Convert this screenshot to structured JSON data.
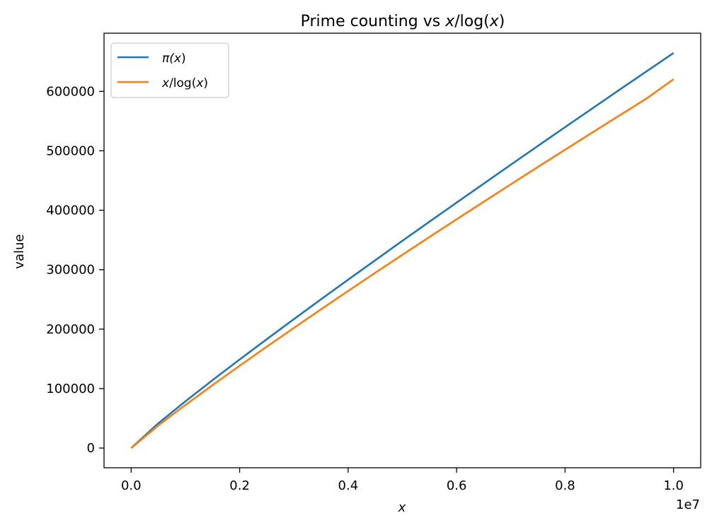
{
  "chart_data": {
    "type": "line",
    "title": {
      "prefix": "Prime counting vs ",
      "var": "x",
      "mid": "/log(",
      "var2": "x",
      "suffix": ")"
    },
    "xlabel": "x",
    "ylabel": "value",
    "x_offset_label": "1e7",
    "xlim": [
      -500000,
      10500000
    ],
    "ylim": [
      -33200,
      697800
    ],
    "x_ticks": [
      0,
      2000000,
      4000000,
      6000000,
      8000000,
      10000000
    ],
    "x_tick_labels": [
      "0.0",
      "0.2",
      "0.4",
      "0.6",
      "0.8",
      "1.0"
    ],
    "y_ticks": [
      0,
      100000,
      200000,
      300000,
      400000,
      500000,
      600000
    ],
    "y_tick_labels": [
      "0",
      "100000",
      "200000",
      "300000",
      "400000",
      "500000",
      "600000"
    ],
    "grid": false,
    "legend_position": "top-left",
    "x": [
      10,
      500000,
      1000000,
      1500000,
      2000000,
      2500000,
      3000000,
      3500000,
      4000000,
      4500000,
      5000000,
      5500000,
      6000000,
      6500000,
      7000000,
      7500000,
      8000000,
      8500000,
      9000000,
      9500000,
      10000000
    ],
    "series": [
      {
        "name": {
          "prefix": "π(",
          "var": "x",
          "suffix": ")"
        },
        "color": "#1f77b4",
        "values": [
          4,
          41538,
          78498,
          114155,
          148933,
          183072,
          216816,
          250150,
          283146,
          315948,
          348513,
          380800,
          412849,
          444757,
          476648,
          508261,
          539777,
          571119,
          602489,
          633578,
          664579
        ]
      },
      {
        "name": {
          "prefix": "",
          "var": "x",
          "mid": "/log(",
          "var2": "x",
          "suffix": ")"
        },
        "color": "#ff7f0e",
        "values": [
          4,
          38024,
          72382,
          105757,
          138417,
          170509,
          202130,
          233346,
          264207,
          294751,
          325012,
          355014,
          384781,
          414330,
          443679,
          472839,
          501824,
          530644,
          559308,
          587825,
          620421
        ]
      }
    ]
  }
}
